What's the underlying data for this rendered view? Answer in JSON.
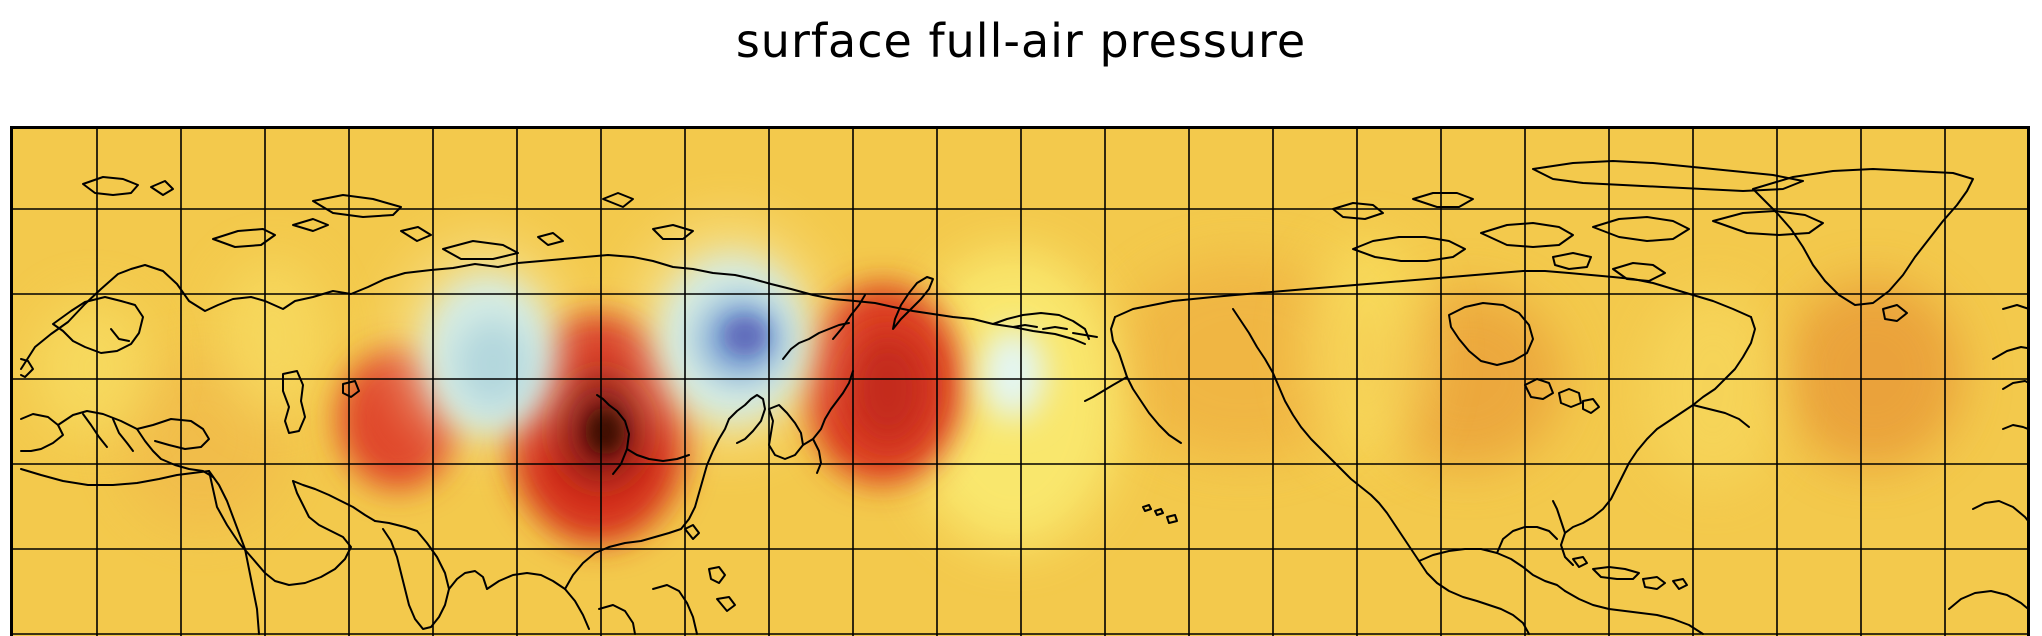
{
  "title": "surface full-air pressure",
  "colors": {
    "background_field": "#f3c94c",
    "high_anomaly": "#d6331f",
    "high_anomaly_core": "#5a0f08",
    "low_anomaly": "#9fd6f3",
    "low_anomaly_core": "#0b24b8",
    "coastline": "#000000",
    "gridline": "#000000"
  },
  "map": {
    "projection": "equirectangular",
    "grid_visible": true
  }
}
